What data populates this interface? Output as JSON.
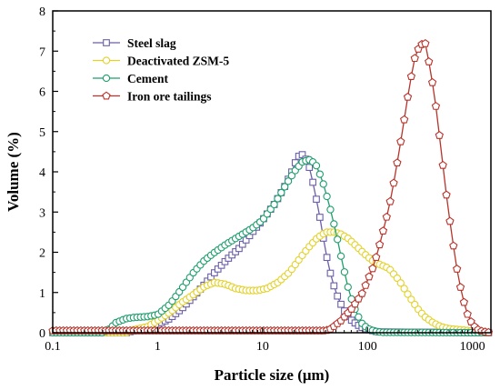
{
  "chart_data": {
    "type": "line",
    "title": "",
    "xlabel": "Particle size (μm)",
    "ylabel": "Volume (%)",
    "xscale": "log",
    "xlim": [
      0.1,
      1500
    ],
    "ylim": [
      0,
      8
    ],
    "xticks": [
      0.1,
      1,
      10,
      100,
      1000
    ],
    "xtick_labels": [
      "0.1",
      "1",
      "10",
      "100",
      "1000"
    ],
    "yticks": [
      0,
      1,
      2,
      3,
      4,
      5,
      6,
      7,
      8
    ],
    "ytick_labels": [
      "0",
      "1",
      "2",
      "3",
      "4",
      "5",
      "6",
      "7",
      "8"
    ],
    "legend_position": "top-left",
    "grid": false,
    "series": [
      {
        "name": "Steel slag",
        "color": "#6a5fa8",
        "marker": "square",
        "x": [
          0.1,
          0.5,
          0.6,
          0.8,
          1.0,
          1.3,
          1.7,
          2.2,
          2.8,
          3.5,
          4.5,
          6,
          8,
          10,
          13,
          16,
          19,
          21,
          23,
          25,
          28,
          31,
          35,
          40,
          45,
          50,
          56,
          63,
          71,
          80,
          90,
          100,
          112,
          125,
          1500
        ],
        "y": [
          0,
          0,
          0.05,
          0.1,
          0.2,
          0.35,
          0.6,
          0.9,
          1.2,
          1.5,
          1.8,
          2.1,
          2.5,
          2.8,
          3.2,
          3.6,
          4.0,
          4.3,
          4.45,
          4.4,
          4.1,
          3.6,
          2.9,
          2.0,
          1.4,
          1.0,
          0.7,
          0.45,
          0.3,
          0.2,
          0.12,
          0.08,
          0.05,
          0.02,
          0
        ]
      },
      {
        "name": "Deactivated ZSM-5",
        "color": "#e3d22a",
        "marker": "circle",
        "x": [
          0.1,
          0.5,
          0.6,
          0.8,
          1.0,
          1.3,
          1.7,
          2.2,
          2.8,
          3.5,
          4.5,
          5.5,
          7,
          9,
          11,
          14,
          18,
          22,
          27,
          33,
          40,
          48,
          56,
          65,
          75,
          90,
          110,
          130,
          160,
          200,
          250,
          300,
          350,
          420,
          500,
          600,
          1500
        ],
        "y": [
          0,
          0,
          0.08,
          0.15,
          0.3,
          0.5,
          0.75,
          0.95,
          1.15,
          1.25,
          1.2,
          1.1,
          1.05,
          1.05,
          1.1,
          1.25,
          1.5,
          1.8,
          2.1,
          2.35,
          2.5,
          2.5,
          2.45,
          2.35,
          2.2,
          2.0,
          1.8,
          1.7,
          1.6,
          1.3,
          0.9,
          0.6,
          0.4,
          0.25,
          0.15,
          0.1,
          0
        ]
      },
      {
        "name": "Cement",
        "color": "#1f9e6e",
        "marker": "circle",
        "x": [
          0.1,
          0.3,
          0.35,
          0.4,
          0.5,
          0.6,
          0.8,
          1.0,
          1.3,
          1.7,
          2.2,
          2.8,
          3.5,
          4.5,
          6,
          8,
          10,
          13,
          16,
          20,
          24,
          28,
          32,
          37,
          43,
          50,
          58,
          67,
          78,
          90,
          105,
          120,
          140,
          1500
        ],
        "y": [
          0,
          0,
          0.1,
          0.25,
          0.35,
          0.38,
          0.4,
          0.45,
          0.7,
          1.1,
          1.5,
          1.8,
          2.0,
          2.2,
          2.4,
          2.6,
          2.8,
          3.2,
          3.6,
          4.0,
          4.25,
          4.3,
          4.2,
          3.8,
          3.2,
          2.5,
          1.7,
          1.0,
          0.5,
          0.2,
          0.08,
          0.03,
          0.01,
          0
        ]
      },
      {
        "name": "Iron ore tailings",
        "color": "#b8332a",
        "marker": "pentagon",
        "x": [
          0.1,
          20,
          40,
          45,
          50,
          56,
          63,
          71,
          80,
          90,
          100,
          112,
          125,
          140,
          160,
          180,
          200,
          224,
          250,
          280,
          315,
          355,
          400,
          450,
          500,
          560,
          630,
          710,
          800,
          900,
          1000,
          1120,
          1250,
          1500
        ],
        "y": [
          0.05,
          0.05,
          0.05,
          0.1,
          0.2,
          0.3,
          0.45,
          0.6,
          0.8,
          1.0,
          1.3,
          1.6,
          2.0,
          2.5,
          3.1,
          3.8,
          4.5,
          5.3,
          6.1,
          6.8,
          7.15,
          7.2,
          6.5,
          5.6,
          4.6,
          3.5,
          2.5,
          1.6,
          0.9,
          0.45,
          0.2,
          0.08,
          0.03,
          0
        ]
      }
    ]
  }
}
